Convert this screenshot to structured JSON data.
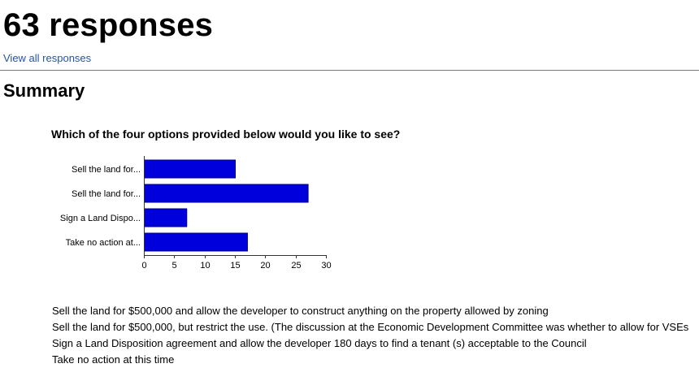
{
  "header": {
    "title": "63 responses",
    "view_all_link": "View all responses",
    "summary_heading": "Summary"
  },
  "question": {
    "text": "Which of the four options provided below would you like to see?"
  },
  "chart_data": {
    "type": "bar",
    "orientation": "horizontal",
    "categories": [
      "Sell the land for...",
      "Sell the land for...",
      "Sign a Land Dispo...",
      "Take no action at..."
    ],
    "values": [
      15,
      27,
      7,
      17
    ],
    "xlim": [
      0,
      30
    ],
    "x_ticks": [
      "0",
      "5",
      "10",
      "15",
      "20",
      "25",
      "30"
    ],
    "bar_color": "#0000dd",
    "bar_border_color": "#000080",
    "grid": false
  },
  "legend_items": [
    "Sell the land for $500,000 and allow the developer to construct anything on the property allowed by zoning",
    "Sell the land for $500,000, but restrict the use. (The discussion at the Economic Development Committee was whether to allow for VSEs",
    "Sign a Land Disposition agreement and allow the developer 180 days to find a tenant (s) acceptable to the Council",
    "Take no action at this time"
  ]
}
